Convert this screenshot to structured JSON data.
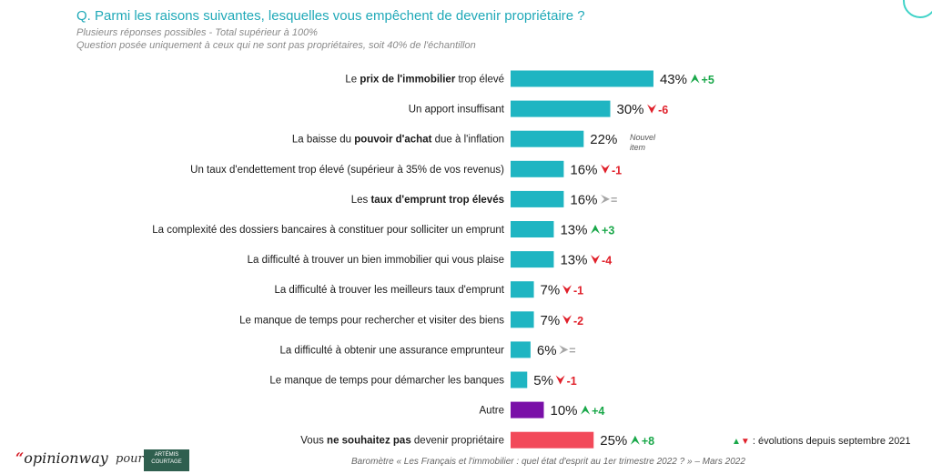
{
  "header": {
    "question": "Q. Parmi les raisons suivantes, lesquelles vous empêchent de devenir propriétaire ?",
    "subtitle_1": "Plusieurs réponses possibles - Total supérieur à 100%",
    "subtitle_2": "Question posée uniquement à ceux qui ne sont pas propriétaires, soit 40% de l'échantillon"
  },
  "colors": {
    "teal": "#1fb5c2",
    "purple": "#7a10a8",
    "red_bar": "#f24a5a",
    "up": "#1aa84a",
    "down": "#e0202a",
    "equal": "#a6a6a6",
    "title": "#20a9b8"
  },
  "chart_data": {
    "type": "bar",
    "orientation": "horizontal",
    "unit": "%",
    "categories": [
      [
        {
          "t": "Le ",
          "b": false
        },
        {
          "t": "prix de l'immobilier",
          "b": true
        },
        {
          "t": " trop élevé",
          "b": false
        }
      ],
      [
        {
          "t": "Un apport insuffisant",
          "b": false
        }
      ],
      [
        {
          "t": "La baisse du ",
          "b": false
        },
        {
          "t": "pouvoir d'achat",
          "b": true
        },
        {
          "t": " due à l'inflation",
          "b": false
        }
      ],
      [
        {
          "t": "Un taux d'endettement trop élevé (supérieur à 35% de vos revenus)",
          "b": false
        }
      ],
      [
        {
          "t": "Les ",
          "b": false
        },
        {
          "t": "taux d'emprunt trop élevés",
          "b": true
        }
      ],
      [
        {
          "t": "La complexité des dossiers bancaires à constituer pour solliciter un emprunt",
          "b": false
        }
      ],
      [
        {
          "t": "La difficulté à trouver un bien immobilier qui vous plaise",
          "b": false
        }
      ],
      [
        {
          "t": "La difficulté à trouver les meilleurs taux d'emprunt",
          "b": false
        }
      ],
      [
        {
          "t": "Le manque de temps pour rechercher et visiter des biens",
          "b": false
        }
      ],
      [
        {
          "t": "La difficulté à obtenir une assurance emprunteur",
          "b": false
        }
      ],
      [
        {
          "t": "Le manque de temps pour démarcher les banques",
          "b": false
        }
      ],
      [
        {
          "t": "Autre",
          "b": false
        }
      ],
      [
        {
          "t": "Vous ",
          "b": false
        },
        {
          "t": "ne souhaitez pas",
          "b": true
        },
        {
          "t": " devenir propriétaire",
          "b": false
        }
      ]
    ],
    "values": [
      43,
      30,
      22,
      16,
      16,
      13,
      13,
      7,
      7,
      6,
      5,
      10,
      25
    ],
    "value_labels": [
      "43%",
      "30%",
      "22%",
      "16%",
      "16%",
      "13%",
      "13%",
      "7%",
      "7%",
      "6%",
      "5%",
      "10%",
      "25%"
    ],
    "bar_colors": [
      "teal",
      "teal",
      "teal",
      "teal",
      "teal",
      "teal",
      "teal",
      "teal",
      "teal",
      "teal",
      "teal",
      "purple",
      "red_bar"
    ],
    "evolution": [
      {
        "dir": "up",
        "text": "+5"
      },
      {
        "dir": "down",
        "text": "-6"
      },
      {
        "dir": "new",
        "text": ""
      },
      {
        "dir": "down",
        "text": "-1"
      },
      {
        "dir": "equal",
        "text": "="
      },
      {
        "dir": "up",
        "text": "+3"
      },
      {
        "dir": "down",
        "text": "-4"
      },
      {
        "dir": "down",
        "text": "-1"
      },
      {
        "dir": "down",
        "text": "-2"
      },
      {
        "dir": "equal",
        "text": "="
      },
      {
        "dir": "down",
        "text": "-1"
      },
      {
        "dir": "up",
        "text": "+4"
      },
      {
        "dir": "up",
        "text": "+8"
      }
    ],
    "new_item_line1": "Nouvel",
    "new_item_line2": "item"
  },
  "legend": {
    "text": ": évolutions depuis septembre 2021"
  },
  "footer": {
    "logo_text": "opinionway",
    "logo_quote": "“",
    "pour": "pour",
    "partner_line1": "ARTÉMIS",
    "partner_line2": "COURTAGE",
    "source": "Baromètre « Les Français et l'immobilier : quel état d'esprit au 1er trimestre 2022 ? » – Mars 2022"
  }
}
